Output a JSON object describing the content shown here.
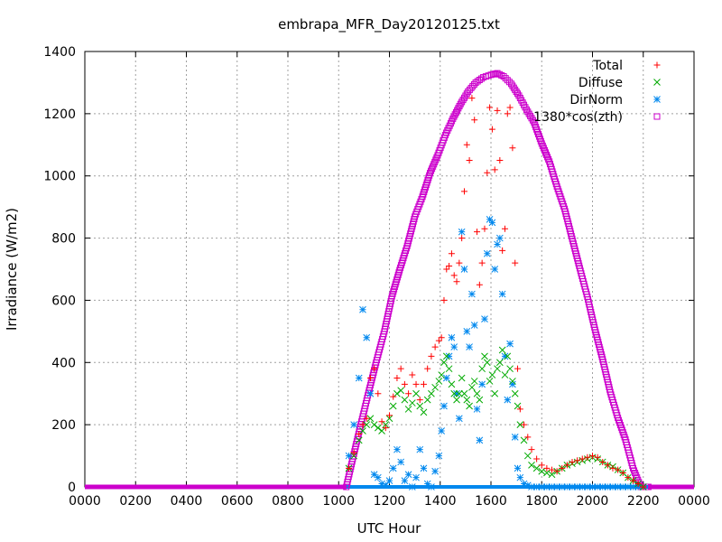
{
  "chart_data": {
    "type": "scatter",
    "title": "embrapa_MFR_Day20120125.txt",
    "xlabel": "UTC Hour",
    "ylabel": "Irradiance (W/m2)",
    "xlim": [
      0,
      24
    ],
    "ylim": [
      0,
      1400
    ],
    "x_ticks": [
      0,
      2,
      4,
      6,
      8,
      10,
      12,
      14,
      16,
      18,
      20,
      22,
      24
    ],
    "x_tick_labels": [
      "0000",
      "0200",
      "0400",
      "0600",
      "0800",
      "1000",
      "1200",
      "1400",
      "1600",
      "1800",
      "2000",
      "2200",
      "0000"
    ],
    "y_ticks": [
      0,
      200,
      400,
      600,
      800,
      1000,
      1200,
      1400
    ],
    "y_tick_labels": [
      "0",
      "200",
      "400",
      "600",
      "800",
      "1000",
      "1200",
      "1400"
    ],
    "grid": true,
    "legend_position": "top-right",
    "series": [
      {
        "name": "Total",
        "marker": "plus",
        "color": "#ff0000",
        "x": [
          10.4,
          10.6,
          10.8,
          10.95,
          11.1,
          11.25,
          11.4,
          11.55,
          11.7,
          11.85,
          12.0,
          12.15,
          12.3,
          12.45,
          12.6,
          12.75,
          12.9,
          13.05,
          13.2,
          13.35,
          13.5,
          13.65,
          13.8,
          13.95,
          14.05,
          14.15,
          14.25,
          14.35,
          14.45,
          14.55,
          14.65,
          14.75,
          14.85,
          14.95,
          15.05,
          15.15,
          15.25,
          15.35,
          15.45,
          15.55,
          15.65,
          15.75,
          15.85,
          15.95,
          16.05,
          16.15,
          16.25,
          16.35,
          16.45,
          16.55,
          16.65,
          16.75,
          16.85,
          16.95,
          17.05,
          17.15,
          17.3,
          17.45,
          17.6,
          17.8,
          18.0,
          18.2,
          18.4,
          18.6,
          18.8,
          19.0,
          19.2,
          19.4,
          19.6,
          19.8,
          20.0,
          20.2,
          20.4,
          20.6,
          20.8,
          21.0,
          21.2,
          21.4,
          21.6,
          21.8,
          22.0
        ],
        "y": [
          60,
          110,
          170,
          200,
          220,
          350,
          380,
          300,
          210,
          190,
          230,
          290,
          350,
          380,
          330,
          300,
          360,
          330,
          280,
          330,
          380,
          420,
          450,
          470,
          480,
          600,
          700,
          710,
          750,
          680,
          660,
          720,
          800,
          950,
          1100,
          1050,
          1250,
          1180,
          820,
          650,
          720,
          830,
          1010,
          1220,
          1150,
          1020,
          1210,
          1050,
          760,
          830,
          1200,
          1220,
          1090,
          720,
          380,
          250,
          200,
          160,
          120,
          90,
          70,
          60,
          55,
          50,
          60,
          70,
          80,
          85,
          90,
          95,
          100,
          95,
          80,
          70,
          60,
          55,
          45,
          30,
          20,
          10,
          0
        ]
      },
      {
        "name": "Diffuse",
        "marker": "cross",
        "color": "#00aa00",
        "x": [
          10.4,
          10.6,
          10.8,
          10.95,
          11.1,
          11.25,
          11.4,
          11.55,
          11.7,
          11.85,
          12.0,
          12.15,
          12.3,
          12.45,
          12.6,
          12.75,
          12.9,
          13.05,
          13.2,
          13.35,
          13.5,
          13.65,
          13.8,
          13.95,
          14.05,
          14.15,
          14.25,
          14.35,
          14.45,
          14.55,
          14.65,
          14.75,
          14.85,
          14.95,
          15.05,
          15.15,
          15.25,
          15.35,
          15.45,
          15.55,
          15.65,
          15.75,
          15.85,
          15.95,
          16.05,
          16.15,
          16.25,
          16.35,
          16.45,
          16.55,
          16.65,
          16.75,
          16.85,
          16.95,
          17.05,
          17.15,
          17.3,
          17.45,
          17.6,
          17.8,
          18.0,
          18.2,
          18.4,
          18.6,
          18.8,
          19.0,
          19.2,
          19.4,
          19.6,
          19.8,
          20.0,
          20.2,
          20.4,
          20.6,
          20.8,
          21.0,
          21.2,
          21.4,
          21.6,
          21.8,
          22.0
        ],
        "y": [
          60,
          100,
          150,
          180,
          200,
          220,
          200,
          190,
          180,
          200,
          220,
          260,
          300,
          310,
          280,
          250,
          270,
          300,
          260,
          240,
          280,
          300,
          320,
          340,
          360,
          400,
          420,
          380,
          330,
          300,
          280,
          300,
          350,
          300,
          280,
          260,
          320,
          340,
          300,
          280,
          380,
          420,
          400,
          340,
          360,
          300,
          380,
          400,
          440,
          360,
          420,
          380,
          340,
          300,
          260,
          200,
          150,
          100,
          70,
          60,
          50,
          45,
          40,
          50,
          60,
          70,
          75,
          80,
          85,
          90,
          95,
          90,
          80,
          70,
          65,
          55,
          45,
          30,
          20,
          10,
          0
        ]
      },
      {
        "name": "DirNorm",
        "marker": "star",
        "color": "#0088ee",
        "x": [
          10.4,
          10.6,
          10.8,
          10.95,
          11.1,
          11.25,
          11.4,
          11.55,
          11.7,
          11.85,
          12.0,
          12.15,
          12.3,
          12.45,
          12.6,
          12.75,
          12.9,
          13.05,
          13.2,
          13.35,
          13.5,
          13.65,
          13.8,
          13.95,
          14.05,
          14.15,
          14.25,
          14.35,
          14.45,
          14.55,
          14.65,
          14.75,
          14.85,
          14.95,
          15.05,
          15.15,
          15.25,
          15.35,
          15.45,
          15.55,
          15.65,
          15.75,
          15.85,
          15.95,
          16.05,
          16.15,
          16.25,
          16.35,
          16.45,
          16.55,
          16.65,
          16.75,
          16.85,
          16.95,
          17.05,
          17.15,
          17.3,
          17.45,
          17.6,
          17.8,
          18.0,
          18.2,
          18.4,
          18.6,
          18.8,
          19.0,
          19.2,
          19.4,
          19.6,
          19.8,
          20.0,
          20.2,
          20.4,
          20.6,
          20.8,
          21.0,
          21.2,
          21.4,
          21.6,
          21.8,
          22.0
        ],
        "y": [
          100,
          200,
          350,
          570,
          480,
          300,
          40,
          30,
          10,
          5,
          20,
          60,
          120,
          80,
          20,
          40,
          0,
          30,
          120,
          60,
          10,
          0,
          50,
          100,
          180,
          260,
          350,
          420,
          480,
          450,
          300,
          220,
          820,
          700,
          500,
          450,
          620,
          520,
          250,
          150,
          330,
          540,
          750,
          860,
          850,
          700,
          780,
          800,
          620,
          420,
          280,
          460,
          330,
          160,
          60,
          30,
          10,
          5,
          0,
          0,
          0,
          0,
          0,
          0,
          0,
          0,
          0,
          0,
          0,
          0,
          0,
          0,
          0,
          0,
          0,
          0,
          0,
          0,
          0,
          0,
          0
        ]
      },
      {
        "name": "1380*cos(zth)",
        "marker": "square",
        "color": "#cc00cc",
        "x": [
          10.3,
          10.6,
          10.9,
          11.2,
          11.5,
          11.8,
          12.1,
          12.4,
          12.7,
          13.0,
          13.3,
          13.6,
          13.9,
          14.2,
          14.5,
          14.8,
          15.1,
          15.4,
          15.7,
          16.0,
          16.25,
          16.5,
          16.8,
          17.1,
          17.4,
          17.7,
          18.0,
          18.3,
          18.6,
          18.9,
          19.2,
          19.5,
          19.8,
          20.1,
          20.4,
          20.7,
          21.0,
          21.3,
          21.6,
          21.9,
          22.2
        ],
        "y": [
          0,
          106,
          210,
          311,
          408,
          500,
          613,
          697,
          775,
          869,
          933,
          1009,
          1066,
          1131,
          1184,
          1231,
          1271,
          1300,
          1317,
          1325,
          1330,
          1320,
          1296,
          1258,
          1213,
          1172,
          1104,
          1046,
          966,
          894,
          798,
          703,
          611,
          505,
          410,
          305,
          222,
          152,
          60,
          0,
          0
        ]
      }
    ],
    "night_baseline": {
      "x_start": 0,
      "x_end": 24,
      "y": 0
    }
  }
}
